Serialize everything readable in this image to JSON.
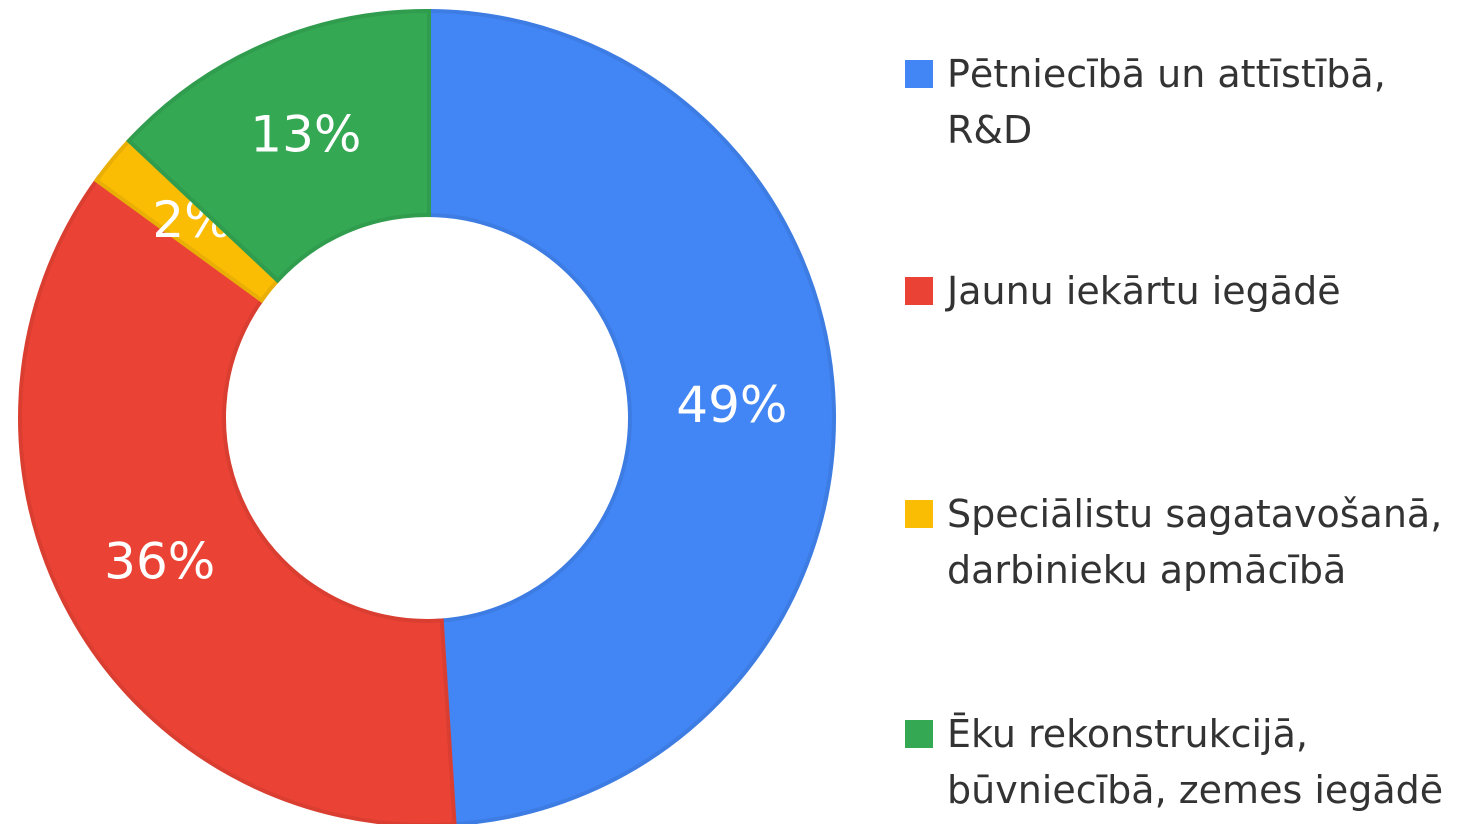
{
  "chart_data": {
    "type": "donut",
    "categories": [
      "Pētniecībā un attīstībā, R&D",
      "Jaunu iekārtu iegādē",
      "Speciālistu sagatavošanā, darbinieku apmācībā",
      "Ēku rekonstrukcijā, būvniecībā, zemes iegādē"
    ],
    "values": [
      49,
      36,
      2,
      13
    ],
    "value_labels": [
      "49%",
      "36%",
      "2%",
      "13%"
    ],
    "colors": [
      "#4285f4",
      "#ea4335",
      "#fbbc04",
      "#34a853"
    ],
    "legend": "right"
  }
}
